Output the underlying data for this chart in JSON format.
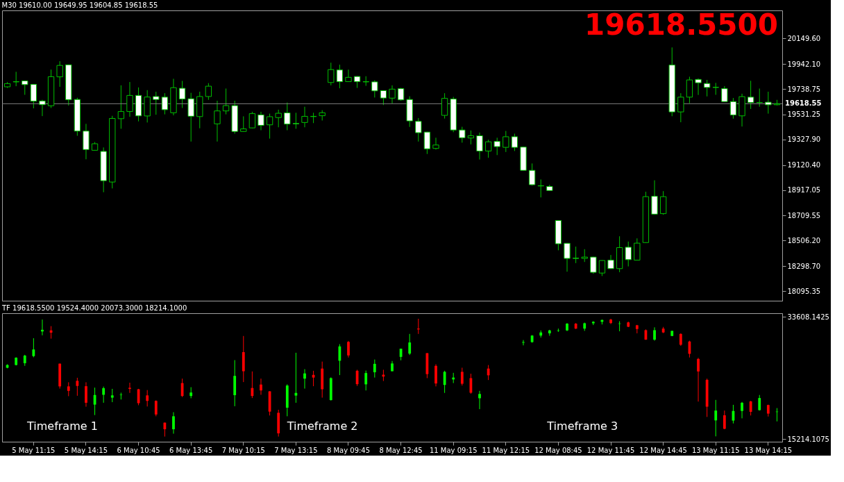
{
  "chart_data": [
    {
      "type": "candlestick",
      "title": "M30 19610.00 19649.95 19604.85 19618.55",
      "categories": [
        null,
        null,
        null,
        null,
        null,
        null,
        null,
        null,
        null,
        null,
        null,
        null,
        null,
        null,
        null,
        null,
        null,
        null,
        null,
        null,
        null,
        null,
        null,
        null,
        null,
        null,
        null,
        null,
        null,
        null,
        null,
        null,
        null,
        null,
        null,
        null,
        null,
        null,
        null,
        null,
        null,
        null,
        null,
        null,
        null,
        null,
        null,
        null,
        null,
        null,
        null,
        null,
        null,
        null,
        null,
        null,
        null,
        null,
        null,
        null,
        null,
        null,
        null,
        null,
        null,
        null,
        null,
        null,
        null,
        null,
        null,
        null,
        null,
        null,
        null,
        null,
        null,
        null,
        null,
        null,
        null,
        null,
        null,
        null,
        null,
        null,
        null,
        null,
        null
      ],
      "ohlc": [
        [
          19756,
          19794,
          19747,
          19782
        ],
        [
          19798,
          19878,
          19761,
          19796
        ],
        [
          19804,
          19805,
          19691,
          19774
        ],
        [
          19776,
          19778,
          19581,
          19639
        ],
        [
          19641,
          19650,
          19518,
          19611
        ],
        [
          19602,
          19896,
          19584,
          19838
        ],
        [
          19837,
          19964,
          19756,
          19930
        ],
        [
          19935,
          19937,
          19604,
          19651
        ],
        [
          19653,
          19667,
          19358,
          19396
        ],
        [
          19396,
          19455,
          19167,
          19246
        ],
        [
          19240,
          19307,
          19238,
          19293
        ],
        [
          19231,
          19263,
          18899,
          18993
        ],
        [
          18982,
          19520,
          18930,
          19499
        ],
        [
          19497,
          19768,
          19415,
          19555
        ],
        [
          19555,
          19795,
          19512,
          19686
        ],
        [
          19686,
          19751,
          19475,
          19520
        ],
        [
          19519,
          19729,
          19466,
          19673
        ],
        [
          19677,
          19716,
          19529,
          19653
        ],
        [
          19672,
          19704,
          19532,
          19570
        ],
        [
          19545,
          19821,
          19524,
          19749
        ],
        [
          19744,
          19804,
          19584,
          19657
        ],
        [
          19659,
          19707,
          19311,
          19517
        ],
        [
          19514,
          19716,
          19419,
          19677
        ],
        [
          19677,
          19786,
          19650,
          19761
        ],
        [
          19455,
          19643,
          19311,
          19560
        ],
        [
          19560,
          19742,
          19532,
          19603
        ],
        [
          19603,
          19643,
          19375,
          19393
        ],
        [
          19393,
          19516,
          19390,
          19414
        ],
        [
          19422,
          19553,
          19419,
          19538
        ],
        [
          19528,
          19553,
          19403,
          19443
        ],
        [
          19447,
          19538,
          19335,
          19513
        ],
        [
          19506,
          19570,
          19427,
          19541
        ],
        [
          19544,
          19628,
          19403,
          19453
        ],
        [
          19458,
          19545,
          19415,
          19455
        ],
        [
          19466,
          19594,
          19427,
          19516
        ],
        [
          19514,
          19545,
          19461,
          19516
        ],
        [
          19521,
          19566,
          19482,
          19545
        ],
        [
          19791,
          19952,
          19768,
          19896
        ],
        [
          19893,
          19936,
          19744,
          19798
        ],
        [
          19798,
          19896,
          19796,
          19833
        ],
        [
          19840,
          19842,
          19747,
          19798
        ],
        [
          19798,
          19842,
          19764,
          19796
        ],
        [
          19796,
          19809,
          19669,
          19723
        ],
        [
          19725,
          19727,
          19608,
          19665
        ],
        [
          19664,
          19768,
          19621,
          19737
        ],
        [
          19741,
          19747,
          19643,
          19650
        ],
        [
          19653,
          19679,
          19430,
          19479
        ],
        [
          19475,
          19502,
          19311,
          19383
        ],
        [
          19388,
          19390,
          19210,
          19252
        ],
        [
          19255,
          19342,
          19246,
          19283
        ],
        [
          19524,
          19704,
          19498,
          19662
        ],
        [
          19657,
          19674,
          19387,
          19405
        ],
        [
          19405,
          19431,
          19302,
          19342
        ],
        [
          19340,
          19401,
          19288,
          19358
        ],
        [
          19358,
          19384,
          19165,
          19234
        ],
        [
          19234,
          19326,
          19179,
          19309
        ],
        [
          19312,
          19342,
          19201,
          19270
        ],
        [
          19264,
          19397,
          19226,
          19350
        ],
        [
          19350,
          19375,
          19234,
          19264
        ],
        [
          19266,
          19268,
          19075,
          19077
        ],
        [
          19077,
          19133,
          18953,
          18960
        ],
        [
          18952,
          19003,
          18857,
          18950
        ],
        [
          18946,
          18960,
          18912,
          18913
        ],
        [
          18669,
          18671,
          18427,
          18480
        ],
        [
          18484,
          18486,
          18253,
          18361
        ],
        [
          18363,
          18457,
          18323,
          18361
        ],
        [
          18361,
          18436,
          18332,
          18372
        ],
        [
          18372,
          18374,
          18236,
          18248
        ],
        [
          18242,
          18346,
          18218,
          18344
        ],
        [
          18347,
          18389,
          18276,
          18278
        ],
        [
          18278,
          18541,
          18249,
          18449
        ],
        [
          18452,
          18498,
          18296,
          18351
        ],
        [
          18347,
          18524,
          18345,
          18485
        ],
        [
          18490,
          18903,
          18488,
          18863
        ],
        [
          18866,
          18996,
          18719,
          18721
        ],
        [
          18725,
          18908,
          18716,
          18863
        ],
        [
          19933,
          20076,
          19517,
          19552
        ],
        [
          19552,
          19704,
          19468,
          19672
        ],
        [
          19672,
          19838,
          19623,
          19812
        ],
        [
          19816,
          19824,
          19690,
          19789
        ],
        [
          19783,
          19812,
          19678,
          19751
        ],
        [
          19752,
          19788,
          19691,
          19751
        ],
        [
          19741,
          19762,
          19634,
          19636
        ],
        [
          19636,
          19665,
          19497,
          19527
        ],
        [
          19520,
          19700,
          19433,
          19676
        ],
        [
          19672,
          19805,
          19576,
          19628
        ],
        [
          19629,
          19742,
          19594,
          19628
        ],
        [
          19631,
          19716,
          19538,
          19610
        ],
        [
          19610,
          19649.95,
          19604.85,
          19618.55
        ]
      ],
      "color": "#00c000",
      "colors": [
        "#000000",
        "#ffffff",
        "#ffffff",
        "#ffffff",
        "#ffffff",
        "#000000",
        "#000000",
        "#ffffff",
        "#ffffff",
        "#ffffff",
        "#000000",
        "#ffffff",
        "#000000",
        "#000000",
        "#000000",
        "#ffffff",
        "#000000",
        "#ffffff",
        "#ffffff",
        "#000000",
        "#ffffff",
        "#ffffff",
        "#000000",
        "#000000",
        "#000000",
        "#000000",
        "#ffffff",
        "#000000",
        "#000000",
        "#ffffff",
        "#000000",
        "#000000",
        "#ffffff",
        "#ffffff",
        "#000000",
        "#000000",
        "#000000",
        "#000000",
        "#ffffff",
        "#000000",
        "#ffffff",
        "#ffffff",
        "#ffffff",
        "#ffffff",
        "#000000",
        "#ffffff",
        "#ffffff",
        "#ffffff",
        "#ffffff",
        "#000000",
        "#000000",
        "#ffffff",
        "#ffffff",
        "#000000",
        "#ffffff",
        "#000000",
        "#ffffff",
        "#000000",
        "#ffffff",
        "#ffffff",
        "#ffffff",
        "#ffffff",
        "#ffffff",
        "#ffffff",
        "#ffffff",
        "#ffffff",
        "#000000",
        "#ffffff",
        "#000000",
        "#ffffff",
        "#000000",
        "#ffffff",
        "#000000",
        "#000000",
        "#ffffff",
        "#000000",
        "#ffffff",
        "#000000",
        "#000000",
        "#ffffff",
        "#ffffff",
        "#ffffff",
        "#ffffff",
        "#ffffff",
        "#000000",
        "#ffffff",
        "#ffffff",
        "#ffffff",
        "#000000"
      ],
      "ylim": [
        18017,
        20377
      ],
      "yticks": [
        {
          "value": 20149.6,
          "label": "20149.60"
        },
        {
          "value": 19942.1,
          "label": "19942.10"
        },
        19738.75,
        19531.25,
        {
          "value": 19327.9,
          "label": "19327.90"
        },
        {
          "value": 19120.4,
          "label": "19120.40"
        },
        18917.05,
        18709.55,
        {
          "value": 18506.2,
          "label": "18506.20"
        },
        {
          "value": 18298.7,
          "label": "18298.70"
        },
        18095.35
      ],
      "tick_labels": "y",
      "ref_lines": [
        {
          "axis": "y",
          "value": 19618.55,
          "label": "19618.55",
          "color": "#808080"
        }
      ],
      "annotations": [
        "19618.5500"
      ]
    },
    {
      "type": "candlestick",
      "title": "TF 19618.5500 19524.4000 20073.3000 18214.1000",
      "categories": [
        null,
        null,
        null,
        "5 May 11:15",
        null,
        null,
        null,
        null,
        null,
        "5 May 14:15",
        null,
        null,
        null,
        null,
        null,
        "6 May 10:45",
        null,
        null,
        null,
        null,
        null,
        "6 May 13:45",
        null,
        null,
        null,
        null,
        null,
        "7 May 10:15",
        null,
        null,
        null,
        null,
        null,
        "7 May 13:15",
        null,
        null,
        null,
        null,
        null,
        "8 May 09:45",
        null,
        null,
        null,
        null,
        null,
        "8 May 12:45",
        null,
        null,
        null,
        null,
        null,
        "11 May 09:15",
        null,
        null,
        null,
        null,
        null,
        "11 May 12:15",
        null,
        null,
        null,
        null,
        null,
        "12 May 08:45",
        null,
        null,
        null,
        null,
        null,
        "12 May 11:45",
        null,
        null,
        null,
        null,
        null,
        "12 May 14:45",
        null,
        null,
        null,
        null,
        null,
        "13 May 11:15",
        null,
        null,
        null,
        null,
        null,
        "13 May 14:15",
        null
      ],
      "ohlc": [
        [
          25970,
          26490,
          25880,
          26370
        ],
        [
          26370,
          27540,
          26310,
          27480
        ],
        [
          26650,
          27910,
          26250,
          27790
        ],
        [
          27720,
          30400,
          27540,
          28710
        ],
        [
          31420,
          33210,
          30840,
          31670
        ],
        [
          31580,
          32220,
          30340,
          31240
        ],
        [
          26580,
          26600,
          22830,
          23160
        ],
        [
          23160,
          23780,
          21690,
          22490
        ],
        [
          24000,
          24460,
          21750,
          23230
        ],
        [
          23190,
          23780,
          20110,
          20700
        ],
        [
          20420,
          22980,
          18850,
          21870
        ],
        [
          21900,
          23130,
          20700,
          22890
        ],
        [
          21470,
          22790,
          20790,
          21810
        ],
        [
          21840,
          22210,
          21190,
          21900
        ],
        [
          22950,
          23720,
          22180,
          22790
        ],
        [
          22730,
          22790,
          20330,
          20640
        ],
        [
          21810,
          22610,
          20140,
          20980
        ],
        [
          20980,
          21070,
          18670,
          18940
        ],
        [
          17710,
          17730,
          15620,
          16720
        ],
        [
          16720,
          19280,
          16050,
          18670
        ],
        [
          23660,
          24330,
          21560,
          21720
        ],
        [
          21720,
          23040,
          21380,
          22240
        ],
        null,
        null,
        null,
        null,
        [
          21840,
          27110,
          20180,
          24740
        ],
        [
          28310,
          30740,
          23810,
          25440
        ],
        [
          22920,
          25410,
          21410,
          21720
        ],
        [
          23440,
          24330,
          21900,
          22550
        ],
        [
          22420,
          22440,
          18790,
          19370
        ],
        [
          19190,
          19650,
          15620,
          16110
        ],
        [
          19960,
          23470,
          18670,
          23290
        ],
        [
          21780,
          28220,
          20700,
          22180
        ],
        [
          24330,
          25750,
          22830,
          25110
        ],
        [
          24890,
          25510,
          23190,
          24490
        ],
        [
          25840,
          26890,
          21470,
          22730
        ],
        [
          21100,
          24520,
          21040,
          24400
        ],
        [
          27020,
          29510,
          24860,
          29170
        ],
        [
          29850,
          30000,
          27510,
          27820
        ],
        [
          25510,
          25660,
          23230,
          23500
        ],
        [
          23470,
          25540,
          22550,
          25170
        ],
        [
          25290,
          27200,
          24490,
          26550
        ],
        [
          24920,
          25660,
          23970,
          24640
        ],
        [
          25440,
          26980,
          25440,
          26610
        ],
        [
          27600,
          28840,
          27080,
          28830
        ],
        [
          28090,
          31050,
          27880,
          29760
        ],
        [
          31850,
          33330,
          31050,
          31730
        ],
        [
          28160,
          28160,
          24400,
          25010
        ],
        [
          26250,
          26490,
          23160,
          23600
        ],
        [
          23380,
          25510,
          22180,
          25350
        ],
        [
          24210,
          25200,
          23660,
          24490
        ],
        [
          25350,
          25970,
          23290,
          23560
        ],
        [
          24400,
          25070,
          22060,
          22210
        ],
        [
          21380,
          22490,
          19740,
          22020
        ],
        [
          25840,
          26370,
          24120,
          24830
        ],
        null,
        null,
        null,
        [
          29730,
          30130,
          29330,
          29820
        ],
        [
          29820,
          30870,
          29730,
          30800
        ],
        [
          30800,
          31580,
          30500,
          31270
        ],
        [
          31140,
          31670,
          30770,
          31580
        ],
        [
          31510,
          31850,
          31360,
          31580
        ],
        [
          31580,
          32680,
          31480,
          32590
        ],
        [
          32590,
          32680,
          31790,
          31850
        ],
        [
          31850,
          32750,
          31510,
          32650
        ],
        [
          32650,
          32960,
          32380,
          32870
        ],
        [
          32870,
          33210,
          32470,
          33150
        ],
        [
          33210,
          33330,
          32530,
          32680
        ],
        [
          32560,
          32960,
          31450,
          32620
        ],
        [
          32780,
          32900,
          32070,
          32130
        ],
        [
          32350,
          32410,
          31140,
          31790
        ],
        [
          31610,
          31730,
          30160,
          30190
        ],
        [
          30190,
          32040,
          30030,
          31610
        ],
        [
          31850,
          32100,
          31170,
          31270
        ],
        [
          30740,
          31520,
          30740,
          31510
        ],
        [
          31050,
          31140,
          29260,
          29420
        ],
        [
          29910,
          30030,
          27510,
          28060
        ],
        [
          27290,
          27450,
          20880,
          25410
        ],
        [
          24150,
          24330,
          18570,
          20110
        ],
        [
          18050,
          21130,
          15650,
          19530
        ],
        [
          18820,
          19530,
          16720,
          16790
        ],
        [
          18020,
          20390,
          17590,
          19470
        ],
        [
          19470,
          20820,
          18360,
          20700
        ],
        [
          20910,
          20980,
          18790,
          19340
        ],
        [
          19590,
          21870,
          19530,
          21410
        ],
        [
          20360,
          20420,
          18630,
          19070
        ],
        [
          19310,
          19900,
          17900,
          19370
        ]
      ],
      "colors": [
        "#00ff00",
        "#00ff00",
        "#00ff00",
        "#00ff00",
        "#00ff00",
        "#ff0000",
        "#ff0000",
        "#ff0000",
        "#ff0000",
        "#ff0000",
        "#00ff00",
        "#00ff00",
        "#00ff00",
        "#00ff00",
        "#ff0000",
        "#ff0000",
        "#ff0000",
        "#ff0000",
        "#ff0000",
        "#00ff00",
        "#ff0000",
        "#00ff00",
        null,
        null,
        null,
        null,
        "#00ff00",
        "#ff0000",
        "#ff0000",
        "#ff0000",
        "#ff0000",
        "#ff0000",
        "#00ff00",
        "#00ff00",
        "#00ff00",
        "#ff0000",
        "#ff0000",
        "#00ff00",
        "#00ff00",
        "#ff0000",
        "#ff0000",
        "#00ff00",
        "#00ff00",
        "#ff0000",
        "#00ff00",
        "#00ff00",
        "#00ff00",
        "#ff0000",
        "#ff0000",
        "#ff0000",
        "#00ff00",
        "#00ff00",
        "#ff0000",
        "#ff0000",
        "#00ff00",
        "#ff0000",
        null,
        null,
        null,
        "#00ff00",
        "#00ff00",
        "#00ff00",
        "#00ff00",
        "#00ff00",
        "#00ff00",
        "#ff0000",
        "#00ff00",
        "#00ff00",
        "#00ff00",
        "#ff0000",
        "#00ff00",
        "#ff0000",
        "#ff0000",
        "#ff0000",
        "#00ff00",
        "#ff0000",
        "#00ff00",
        "#ff0000",
        "#ff0000",
        "#ff0000",
        "#ff0000",
        "#00ff00",
        "#ff0000",
        "#00ff00",
        "#00ff00",
        "#ff0000",
        "#00ff00",
        "#ff0000",
        "#00ff00"
      ],
      "ylim": [
        14845,
        34160
      ],
      "yticks": [
        33608.1425,
        15214.1075
      ],
      "annotations": [
        "Timeframe 1",
        "Timeframe 2",
        "Timeframe 3"
      ]
    }
  ]
}
